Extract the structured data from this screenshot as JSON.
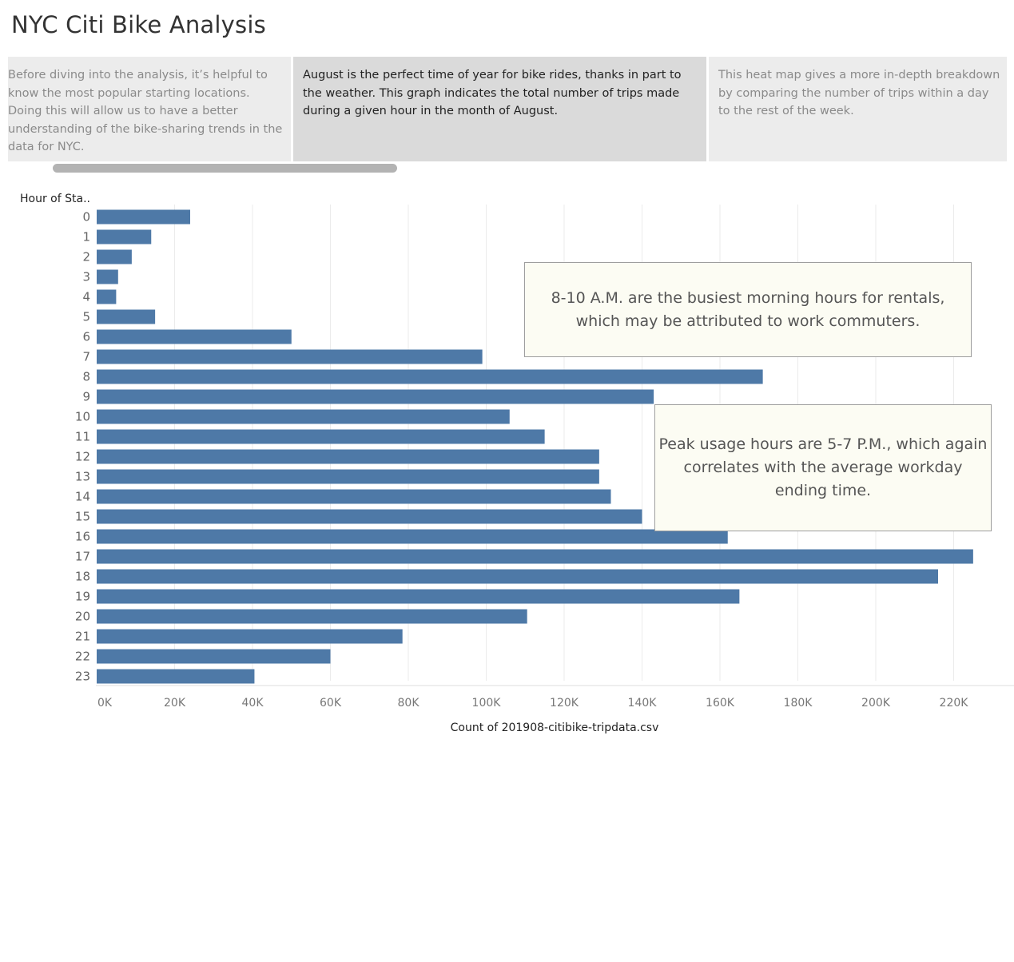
{
  "title": "NYC Citi Bike Analysis",
  "story_points": [
    {
      "text": "Before diving into the analysis, it’s helpful to know the most popular starting locations. Doing this will allow us to have a better understanding of the bike-sharing trends in the data for NYC.",
      "active": false
    },
    {
      "text": "August is the perfect time of year for bike rides, thanks in part to the weather. This graph indicates the total number of trips made during a given hour in the month of August.",
      "active": true
    },
    {
      "text": "This heat map gives a more in-depth breakdown by comparing the number of trips within a day to the rest of the week.",
      "active": false
    }
  ],
  "annotations": {
    "morning": "8-10 A.M. are the busiest morning hours for rentals, which may be attributed to work commuters.",
    "evening": "Peak usage hours are 5-7 P.M., which again correlates with the average workday ending time."
  },
  "colors": {
    "bar": "#4e79a7",
    "grid": "#ebebeb"
  },
  "chart_data": {
    "type": "bar",
    "orientation": "horizontal",
    "ylabel": "Hour of Sta..",
    "xlabel": "Count of 201908-citibike-tripdata.csv",
    "categories": [
      "0",
      "1",
      "2",
      "3",
      "4",
      "5",
      "6",
      "7",
      "8",
      "9",
      "10",
      "11",
      "12",
      "13",
      "14",
      "15",
      "16",
      "17",
      "18",
      "19",
      "20",
      "21",
      "22",
      "23"
    ],
    "values": [
      24000,
      14000,
      9000,
      5500,
      5000,
      15000,
      50000,
      99000,
      171000,
      143000,
      106000,
      115000,
      129000,
      129000,
      132000,
      140000,
      162000,
      225000,
      216000,
      165000,
      110500,
      78500,
      60000,
      40500
    ],
    "xlim": [
      0,
      235000
    ],
    "xticks": [
      0,
      20000,
      40000,
      60000,
      80000,
      100000,
      120000,
      140000,
      160000,
      180000,
      200000,
      220000
    ],
    "xtick_labels": [
      "0K",
      "20K",
      "40K",
      "60K",
      "80K",
      "100K",
      "120K",
      "140K",
      "160K",
      "180K",
      "200K",
      "220K"
    ],
    "grid": true
  }
}
